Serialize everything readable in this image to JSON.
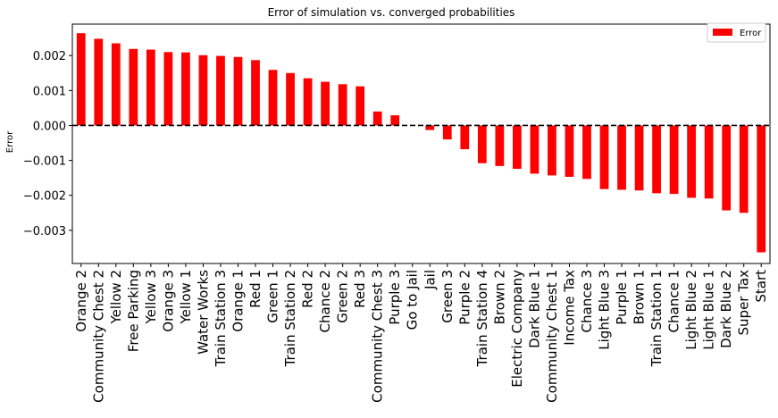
{
  "chart_data": {
    "type": "bar",
    "title": "Error of simulation vs. converged probabilities",
    "xlabel": "",
    "ylabel": "Error",
    "ylim": [
      -0.00395,
      0.0029
    ],
    "yticks": [
      0.002,
      0.001,
      0.0,
      -0.001,
      -0.002,
      -0.003
    ],
    "ytick_labels": [
      "0.002",
      "0.001",
      "0.000",
      "−0.001",
      "−0.002",
      "−0.003"
    ],
    "grid": false,
    "legend_position": "top-right",
    "bar_color": "#ff0000",
    "zero_line": {
      "value": 0,
      "style": "dashed",
      "color": "#000000"
    },
    "series": [
      {
        "name": "Error"
      }
    ],
    "categories": [
      "Orange 2",
      "Community Chest 2",
      "Yellow 2",
      "Free Parking",
      "Yellow 3",
      "Orange 3",
      "Yellow 1",
      "Water Works",
      "Train Station 3",
      "Orange 1",
      "Red 1",
      "Green 1",
      "Train Station 2",
      "Red 2",
      "Chance 2",
      "Green 2",
      "Red 3",
      "Community Chest 3",
      "Purple 3",
      "Go to Jail",
      "Jail",
      "Green 3",
      "Purple 2",
      "Train Station 4",
      "Brown 2",
      "Electric Company",
      "Dark Blue 1",
      "Community Chest 1",
      "Income Tax",
      "Chance 3",
      "Light Blue 3",
      "Purple 1",
      "Brown 1",
      "Train Station 1",
      "Chance 1",
      "Light Blue 2",
      "Light Blue 1",
      "Dark Blue 2",
      "Super Tax",
      "Start"
    ],
    "values": [
      0.00264,
      0.00248,
      0.00235,
      0.00219,
      0.00217,
      0.0021,
      0.00209,
      0.00201,
      0.00199,
      0.00196,
      0.00187,
      0.00159,
      0.0015,
      0.00135,
      0.00125,
      0.00118,
      0.00112,
      0.0004,
      0.00029,
      0.0,
      -0.00013,
      -0.0004,
      -0.00068,
      -0.00108,
      -0.00116,
      -0.00124,
      -0.00138,
      -0.00143,
      -0.00147,
      -0.00153,
      -0.00182,
      -0.00184,
      -0.00186,
      -0.00194,
      -0.00196,
      -0.00207,
      -0.00209,
      -0.00243,
      -0.0025,
      -0.00363
    ]
  }
}
